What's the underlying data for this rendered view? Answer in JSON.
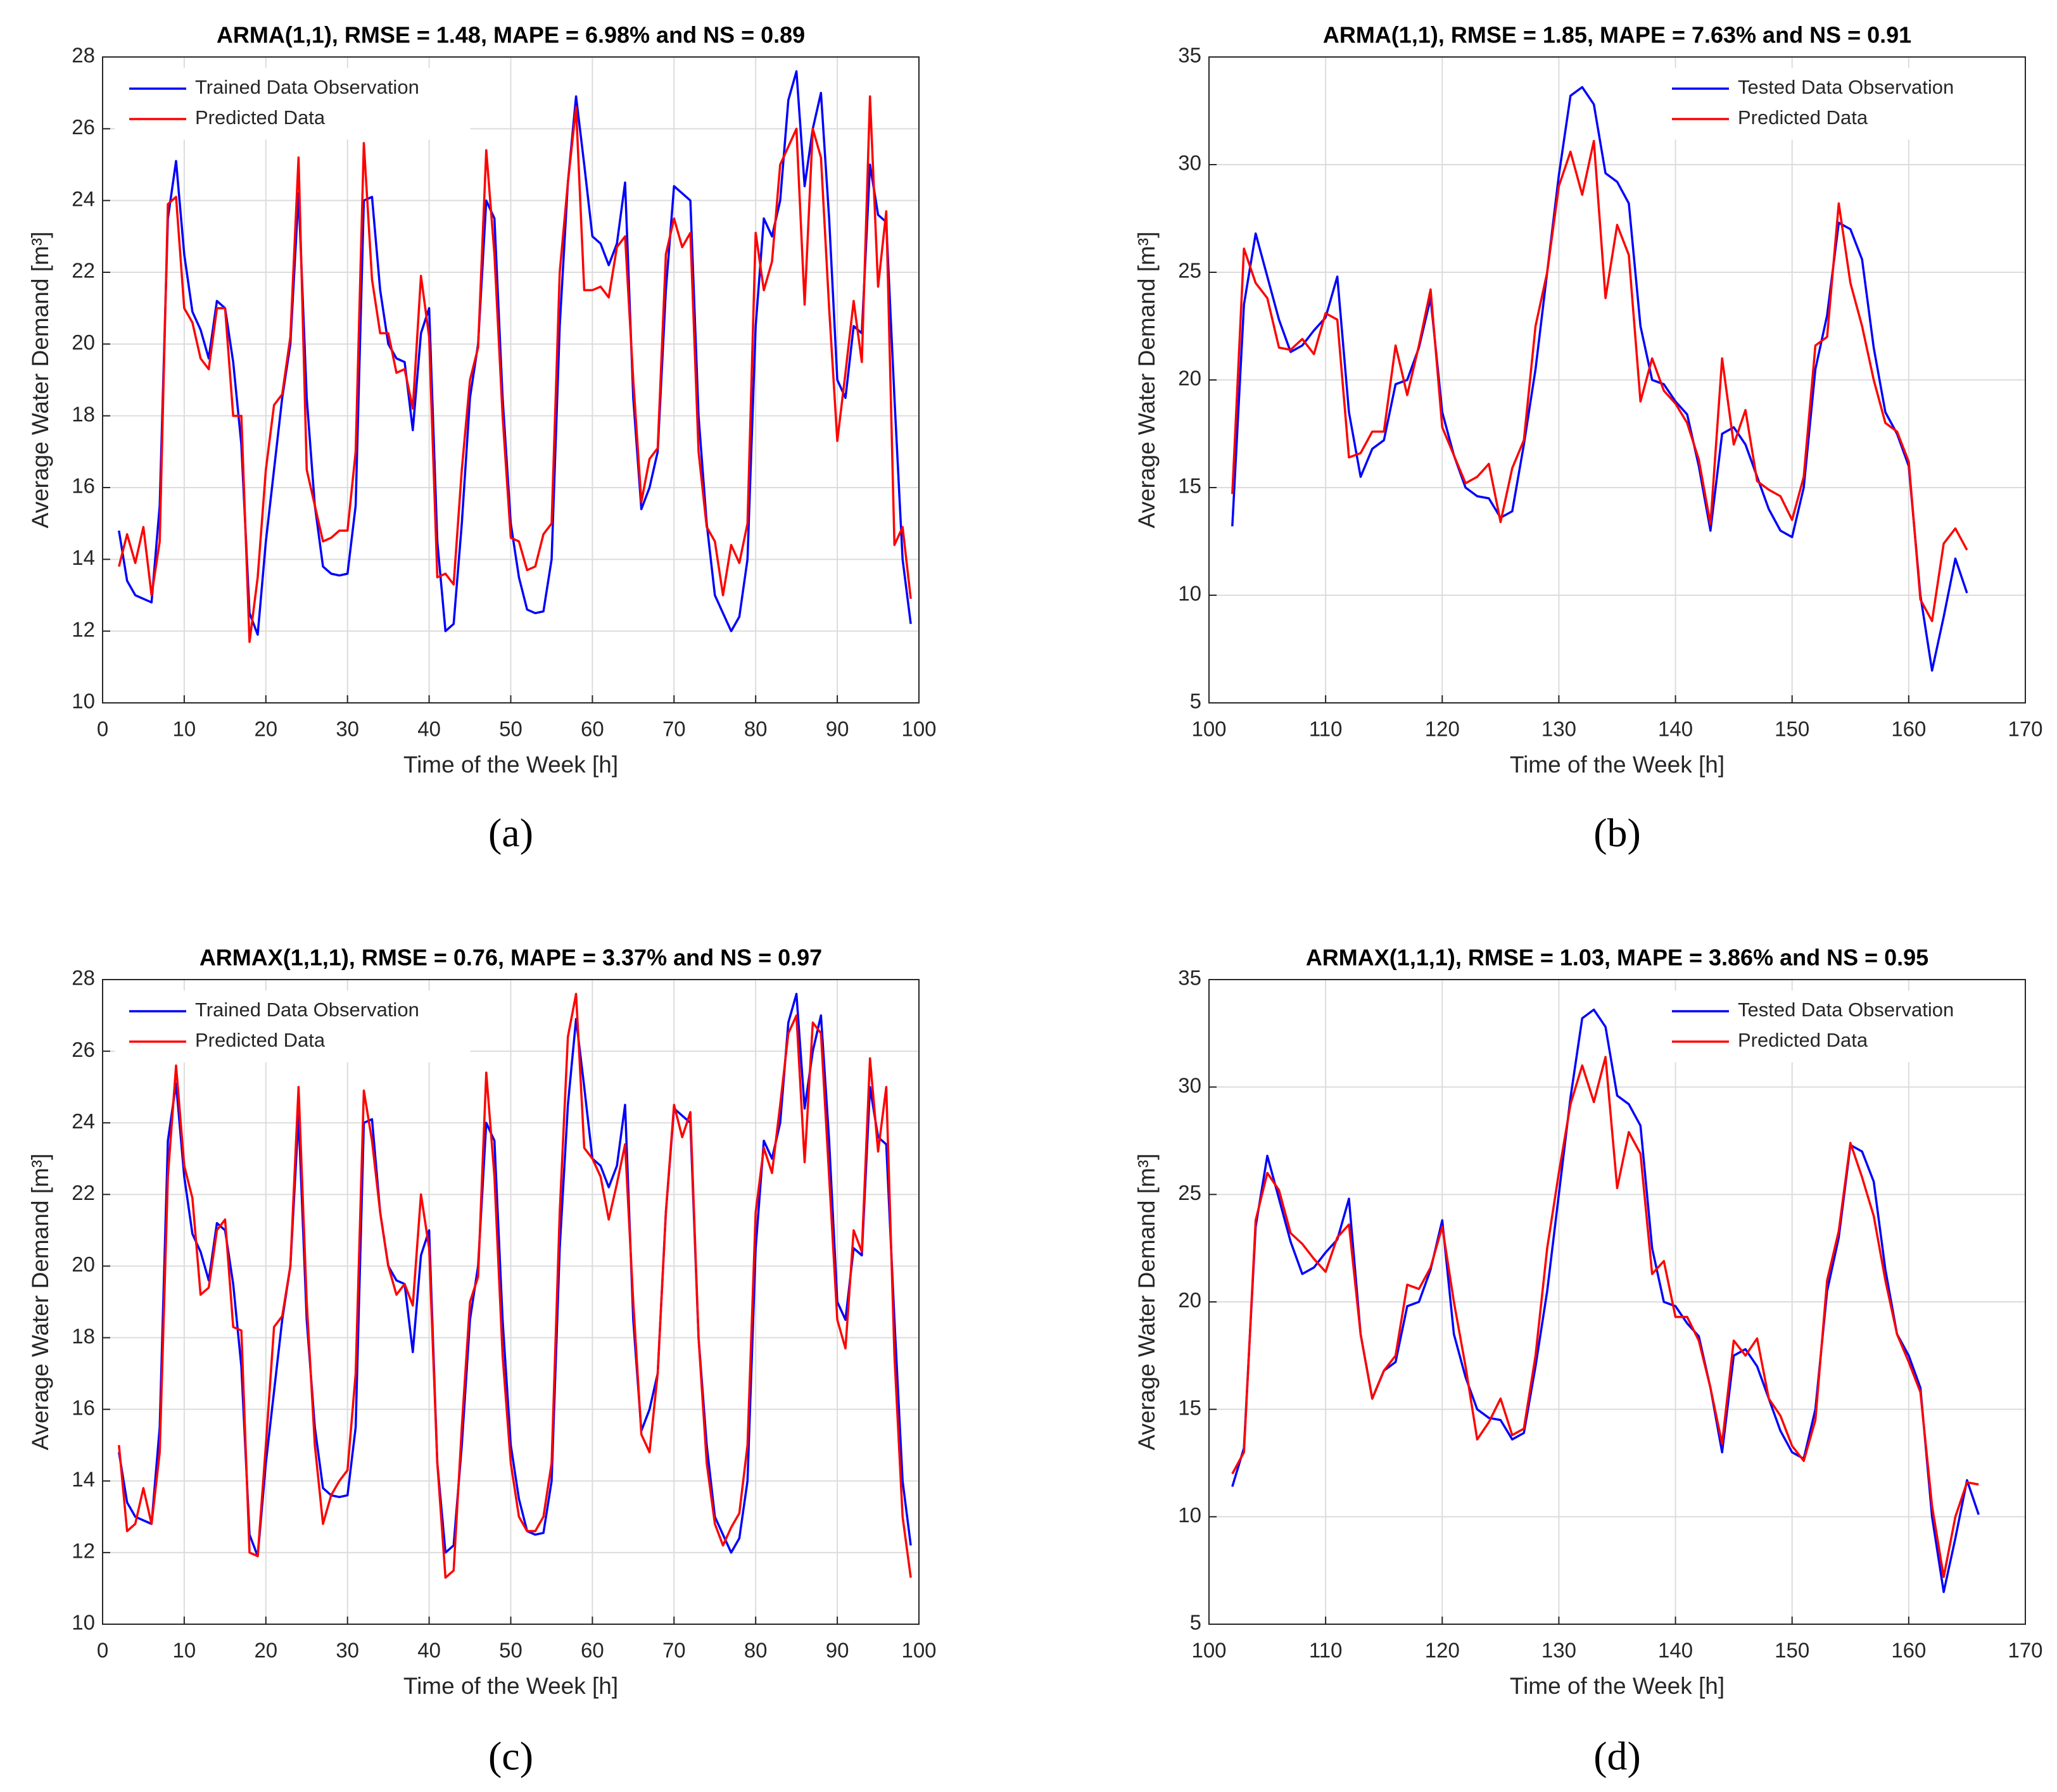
{
  "chart_data": [
    {
      "type": "line",
      "title": "ARMA(1,1), RMSE = 1.48, MAPE = 6.98% and NS = 0.89",
      "caption": "(a)",
      "xlabel": "Time of the Week [h]",
      "ylabel": "Average Water Demand [m³]",
      "xlim": [
        0,
        100
      ],
      "xticks": [
        0,
        10,
        20,
        30,
        40,
        50,
        60,
        70,
        80,
        90,
        100
      ],
      "ylim": [
        10,
        28
      ],
      "yticks": [
        10,
        12,
        14,
        16,
        18,
        20,
        22,
        24,
        26,
        28
      ],
      "grid": true,
      "legend": "upper left",
      "x": [
        2,
        3,
        4,
        5,
        6,
        7,
        8,
        9,
        10,
        11,
        12,
        13,
        14,
        15,
        16,
        17,
        18,
        19,
        20,
        21,
        22,
        23,
        24,
        25,
        26,
        27,
        28,
        29,
        30,
        31,
        32,
        33,
        34,
        35,
        36,
        37,
        38,
        39,
        40,
        41,
        42,
        43,
        44,
        45,
        46,
        47,
        48,
        49,
        50,
        51,
        52,
        53,
        54,
        55,
        56,
        57,
        58,
        59,
        60,
        61,
        62,
        63,
        64,
        65,
        66,
        67,
        68,
        69,
        70,
        71,
        72,
        73,
        74,
        75,
        76,
        77,
        78,
        79,
        80,
        81,
        82,
        83,
        84,
        85,
        86,
        87,
        88,
        89,
        90,
        91,
        92,
        93,
        94,
        95,
        96,
        97,
        98,
        99
      ],
      "series": [
        {
          "name": "Trained Data Observation",
          "color": "#0000ff",
          "values": [
            14.8,
            13.4,
            13.0,
            12.9,
            12.8,
            15.5,
            23.5,
            25.1,
            22.5,
            20.9,
            20.4,
            19.6,
            21.2,
            21.0,
            19.5,
            17.2,
            12.5,
            11.9,
            14.5,
            16.5,
            18.5,
            20.0,
            24.2,
            18.5,
            15.5,
            13.8,
            13.6,
            13.55,
            13.6,
            15.5,
            24.0,
            24.1,
            21.5,
            20.0,
            19.6,
            19.5,
            17.6,
            20.3,
            21.0,
            14.5,
            12.0,
            12.2,
            15.0,
            18.5,
            20.0,
            24.0,
            23.5,
            18.5,
            15.0,
            13.5,
            12.6,
            12.5,
            12.55,
            14.0,
            20.5,
            24.5,
            26.9,
            25.0,
            23.0,
            22.8,
            22.2,
            22.8,
            24.5,
            18.5,
            15.4,
            16.0,
            17.0,
            21.5,
            24.4,
            24.2,
            24.0,
            18.0,
            15.0,
            13.0,
            12.5,
            12.0,
            12.4,
            14.0,
            20.5,
            23.5,
            23.0,
            24.0,
            26.8,
            27.6,
            24.4,
            26.0,
            27.0,
            23.5,
            19.0,
            18.5,
            20.5,
            20.3,
            25.0,
            23.6,
            23.4,
            18.5,
            14.0,
            12.2
          ]
        },
        {
          "name": "Predicted Data",
          "color": "#ff0000",
          "values": [
            13.8,
            14.7,
            13.9,
            14.9,
            13.0,
            14.5,
            23.9,
            24.1,
            21.0,
            20.6,
            19.6,
            19.3,
            21.0,
            21.0,
            18.0,
            18.0,
            11.7,
            13.5,
            16.5,
            18.3,
            18.6,
            20.2,
            25.2,
            16.5,
            15.5,
            14.5,
            14.6,
            14.8,
            14.8,
            17.0,
            25.6,
            21.8,
            20.3,
            20.3,
            19.2,
            19.3,
            18.2,
            21.9,
            20.2,
            13.5,
            13.6,
            13.3,
            16.5,
            19.0,
            19.9,
            25.4,
            22.5,
            18.0,
            14.6,
            14.5,
            13.7,
            13.8,
            14.7,
            15.0,
            22.0,
            24.5,
            26.6,
            21.5,
            21.5,
            21.6,
            21.3,
            22.7,
            23.0,
            19.0,
            15.6,
            16.8,
            17.1,
            22.5,
            23.5,
            22.7,
            23.1,
            17.0,
            14.9,
            14.5,
            13.0,
            14.4,
            13.9,
            15.0,
            23.1,
            21.5,
            22.3,
            25.0,
            25.5,
            26.0,
            21.1,
            26.0,
            25.2,
            21.0,
            17.3,
            19.2,
            21.2,
            19.5,
            26.9,
            21.6,
            23.7,
            14.4,
            14.9,
            12.9
          ]
        }
      ]
    },
    {
      "type": "line",
      "title": "ARMA(1,1), RMSE = 1.85, MAPE = 7.63% and NS = 0.91",
      "caption": "(b)",
      "xlabel": "Time of the Week [h]",
      "ylabel": "Average Water Demand [m³]",
      "xlim": [
        100,
        170
      ],
      "xticks": [
        100,
        110,
        120,
        130,
        140,
        150,
        160,
        170
      ],
      "ylim": [
        5,
        35
      ],
      "yticks": [
        5,
        10,
        15,
        20,
        25,
        30,
        35
      ],
      "grid": true,
      "legend": "upper right",
      "x": [
        102,
        103,
        104,
        105,
        106,
        107,
        108,
        109,
        110,
        111,
        112,
        113,
        114,
        115,
        116,
        117,
        118,
        119,
        120,
        121,
        122,
        123,
        124,
        125,
        126,
        127,
        128,
        129,
        130,
        131,
        132,
        133,
        134,
        135,
        136,
        137,
        138,
        139,
        140,
        141,
        142,
        143,
        144,
        145,
        146,
        147,
        148,
        149,
        150,
        151,
        152,
        153,
        154,
        155,
        156,
        157,
        158,
        159,
        160,
        161,
        162,
        163,
        164,
        165
      ],
      "series": [
        {
          "name": "Tested Data Observation",
          "color": "#0000ff",
          "values": [
            13.2,
            23.5,
            26.8,
            24.8,
            22.8,
            21.3,
            21.6,
            22.3,
            22.9,
            24.8,
            18.5,
            15.5,
            16.8,
            17.2,
            19.8,
            20.0,
            21.5,
            23.8,
            18.5,
            16.5,
            15.0,
            14.6,
            14.5,
            13.6,
            13.9,
            17.0,
            20.5,
            25.0,
            29.5,
            33.2,
            33.6,
            32.8,
            29.6,
            29.2,
            28.2,
            22.5,
            20.0,
            19.8,
            19.0,
            18.4,
            16.0,
            13.0,
            17.5,
            17.8,
            17.0,
            15.5,
            14.0,
            13.0,
            12.7,
            15.0,
            20.5,
            23.0,
            27.3,
            27.0,
            25.6,
            21.5,
            18.5,
            17.5,
            16.0,
            10.0,
            6.5,
            9.0,
            11.7,
            10.1
          ]
        },
        {
          "name": "Predicted Data",
          "color": "#ff0000",
          "values": [
            14.7,
            26.1,
            24.5,
            23.8,
            21.5,
            21.4,
            21.9,
            21.2,
            23.1,
            22.8,
            16.4,
            16.6,
            17.6,
            17.6,
            21.6,
            19.3,
            21.6,
            24.2,
            17.8,
            16.5,
            15.2,
            15.5,
            16.1,
            13.4,
            15.9,
            17.2,
            22.5,
            25.0,
            29.0,
            30.6,
            28.6,
            31.1,
            23.8,
            27.2,
            25.8,
            19.0,
            21.0,
            19.5,
            18.9,
            18.0,
            16.3,
            13.3,
            21.0,
            17.0,
            18.6,
            15.3,
            14.9,
            14.6,
            13.5,
            15.5,
            21.6,
            22.0,
            28.2,
            24.5,
            22.5,
            20.0,
            18.0,
            17.6,
            16.2,
            9.8,
            8.8,
            12.4,
            13.1,
            12.1
          ]
        }
      ]
    },
    {
      "type": "line",
      "title": "ARMAX(1,1,1), RMSE = 0.76, MAPE = 3.37% and NS = 0.97",
      "caption": "(c)",
      "xlabel": "Time of the Week [h]",
      "ylabel": "Average Water Demand [m³]",
      "xlim": [
        0,
        100
      ],
      "xticks": [
        0,
        10,
        20,
        30,
        40,
        50,
        60,
        70,
        80,
        90,
        100
      ],
      "ylim": [
        10,
        28
      ],
      "yticks": [
        10,
        12,
        14,
        16,
        18,
        20,
        22,
        24,
        26,
        28
      ],
      "grid": true,
      "legend": "upper left",
      "x": [
        2,
        3,
        4,
        5,
        6,
        7,
        8,
        9,
        10,
        11,
        12,
        13,
        14,
        15,
        16,
        17,
        18,
        19,
        20,
        21,
        22,
        23,
        24,
        25,
        26,
        27,
        28,
        29,
        30,
        31,
        32,
        33,
        34,
        35,
        36,
        37,
        38,
        39,
        40,
        41,
        42,
        43,
        44,
        45,
        46,
        47,
        48,
        49,
        50,
        51,
        52,
        53,
        54,
        55,
        56,
        57,
        58,
        59,
        60,
        61,
        62,
        63,
        64,
        65,
        66,
        67,
        68,
        69,
        70,
        71,
        72,
        73,
        74,
        75,
        76,
        77,
        78,
        79,
        80,
        81,
        82,
        83,
        84,
        85,
        86,
        87,
        88,
        89,
        90,
        91,
        92,
        93,
        94,
        95,
        96,
        97,
        98,
        99
      ],
      "series": [
        {
          "name": "Trained Data Observation",
          "color": "#0000ff",
          "values": [
            14.8,
            13.4,
            13.0,
            12.9,
            12.8,
            15.5,
            23.5,
            25.1,
            22.5,
            20.9,
            20.4,
            19.6,
            21.2,
            21.0,
            19.5,
            17.2,
            12.5,
            11.9,
            14.5,
            16.5,
            18.5,
            20.0,
            24.2,
            18.5,
            15.5,
            13.8,
            13.6,
            13.55,
            13.6,
            15.5,
            24.0,
            24.1,
            21.5,
            20.0,
            19.6,
            19.5,
            17.6,
            20.3,
            21.0,
            14.5,
            12.0,
            12.2,
            15.0,
            18.5,
            20.0,
            24.0,
            23.5,
            18.5,
            15.0,
            13.5,
            12.6,
            12.5,
            12.55,
            14.0,
            20.5,
            24.5,
            26.9,
            25.0,
            23.0,
            22.8,
            22.2,
            22.8,
            24.5,
            18.5,
            15.4,
            16.0,
            17.0,
            21.5,
            24.4,
            24.2,
            24.0,
            18.0,
            15.0,
            13.0,
            12.5,
            12.0,
            12.4,
            14.0,
            20.5,
            23.5,
            23.0,
            24.0,
            26.8,
            27.6,
            24.4,
            26.0,
            27.0,
            23.5,
            19.0,
            18.5,
            20.5,
            20.3,
            25.0,
            23.6,
            23.4,
            18.5,
            14.0,
            12.2
          ]
        },
        {
          "name": "Predicted Data",
          "color": "#ff0000",
          "values": [
            15.0,
            12.6,
            12.8,
            13.8,
            12.8,
            14.8,
            22.5,
            25.6,
            22.8,
            21.9,
            19.2,
            19.4,
            21.0,
            21.3,
            18.3,
            18.2,
            12.0,
            11.9,
            15.0,
            18.3,
            18.6,
            20.0,
            25.0,
            19.0,
            15.0,
            12.8,
            13.6,
            14.0,
            14.3,
            17.0,
            24.9,
            23.5,
            21.5,
            20.0,
            19.2,
            19.5,
            18.9,
            22.0,
            20.5,
            14.5,
            11.3,
            11.5,
            15.5,
            19.0,
            19.7,
            25.4,
            22.5,
            17.5,
            14.5,
            13.0,
            12.6,
            12.6,
            13.0,
            14.5,
            21.5,
            26.4,
            27.6,
            23.3,
            23.0,
            22.5,
            21.3,
            22.3,
            23.4,
            19.0,
            15.3,
            14.8,
            17.0,
            21.5,
            24.5,
            23.6,
            24.3,
            18.0,
            14.5,
            12.8,
            12.2,
            12.7,
            13.1,
            15.0,
            21.5,
            23.3,
            22.6,
            24.5,
            26.5,
            27.0,
            22.9,
            26.8,
            26.5,
            22.5,
            18.5,
            17.7,
            21.0,
            20.4,
            25.8,
            23.2,
            25.0,
            17.5,
            13.0,
            11.3
          ]
        }
      ]
    },
    {
      "type": "line",
      "title": "ARMAX(1,1,1), RMSE = 1.03, MAPE = 3.86% and NS = 0.95",
      "caption": "(d)",
      "xlabel": "Time of the Week [h]",
      "ylabel": "Average Water Demand [m³]",
      "xlim": [
        100,
        170
      ],
      "xticks": [
        100,
        110,
        120,
        130,
        140,
        150,
        160,
        170
      ],
      "ylim": [
        5,
        35
      ],
      "yticks": [
        5,
        10,
        15,
        20,
        25,
        30,
        35
      ],
      "grid": true,
      "legend": "upper right",
      "x": [
        102,
        103,
        104,
        105,
        106,
        107,
        108,
        109,
        110,
        111,
        112,
        113,
        114,
        115,
        116,
        117,
        118,
        119,
        120,
        121,
        122,
        123,
        124,
        125,
        126,
        127,
        128,
        129,
        130,
        131,
        132,
        133,
        134,
        135,
        136,
        137,
        138,
        139,
        140,
        141,
        142,
        143,
        144,
        145,
        146,
        147,
        148,
        149,
        150,
        151,
        152,
        153,
        154,
        155,
        156,
        157,
        158,
        159,
        160,
        161,
        162,
        163,
        164,
        165,
        166
      ],
      "series": [
        {
          "name": "Tested Data Observation",
          "color": "#0000ff",
          "values": [
            11.4,
            13.2,
            23.5,
            26.8,
            24.8,
            22.8,
            21.3,
            21.6,
            22.3,
            22.9,
            24.8,
            18.5,
            15.5,
            16.8,
            17.2,
            19.8,
            20.0,
            21.5,
            23.8,
            18.5,
            16.5,
            15.0,
            14.6,
            14.5,
            13.6,
            13.9,
            17.0,
            20.5,
            25.0,
            29.5,
            33.2,
            33.6,
            32.8,
            29.6,
            29.2,
            28.2,
            22.5,
            20.0,
            19.8,
            19.0,
            18.4,
            16.0,
            13.0,
            17.5,
            17.8,
            17.0,
            15.5,
            14.0,
            13.0,
            12.7,
            15.0,
            20.5,
            23.0,
            27.3,
            27.0,
            25.6,
            21.5,
            18.5,
            17.5,
            16.0,
            10.0,
            6.5,
            9.0,
            11.7,
            10.1
          ]
        },
        {
          "name": "Predicted Data",
          "color": "#ff0000",
          "values": [
            12.0,
            13.0,
            23.8,
            26.0,
            25.2,
            23.2,
            22.7,
            22.0,
            21.4,
            23.0,
            23.6,
            18.5,
            15.5,
            16.8,
            17.5,
            20.8,
            20.6,
            21.6,
            23.5,
            20.0,
            17.0,
            13.6,
            14.4,
            15.5,
            13.8,
            14.1,
            17.5,
            22.5,
            26.0,
            29.2,
            31.0,
            29.3,
            31.4,
            25.3,
            27.9,
            26.9,
            21.3,
            21.9,
            19.3,
            19.3,
            18.2,
            16.0,
            13.4,
            18.2,
            17.5,
            18.3,
            15.5,
            14.7,
            13.3,
            12.6,
            14.5,
            21.0,
            23.3,
            27.4,
            25.8,
            24.0,
            21.0,
            18.5,
            17.2,
            15.8,
            10.5,
            7.2,
            10.0,
            11.6,
            11.5
          ]
        }
      ]
    }
  ]
}
